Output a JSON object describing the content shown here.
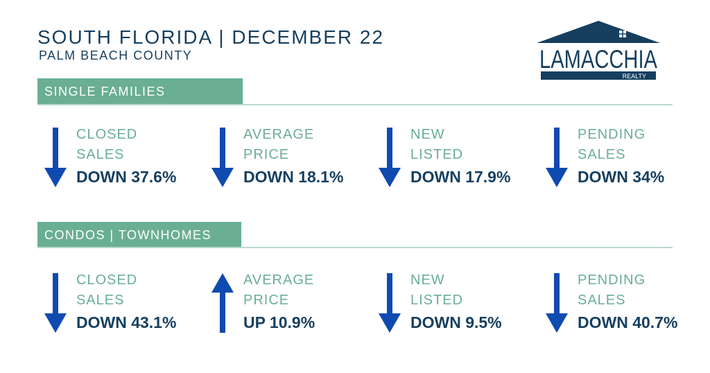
{
  "header": {
    "title": "SOUTH FLORIDA | DECEMBER 22",
    "subtitle": "PALM BEACH COUNTY"
  },
  "logo": {
    "name": "LAMACCHIA",
    "tagline": "REALTY",
    "color": "#163f5f"
  },
  "colors": {
    "accent_green": "#6aae94",
    "navy": "#163f5f",
    "arrow_blue": "#0f4ab0"
  },
  "sections": [
    {
      "title": "SINGLE FAMILIES",
      "stats": [
        {
          "label_line1": "CLOSED",
          "label_line2": "SALES",
          "value": "DOWN 37.6%",
          "direction": "down"
        },
        {
          "label_line1": "AVERAGE",
          "label_line2": "PRICE",
          "value": "DOWN 18.1%",
          "direction": "down"
        },
        {
          "label_line1": "NEW",
          "label_line2": "LISTED",
          "value": "DOWN 17.9%",
          "direction": "down"
        },
        {
          "label_line1": "PENDING",
          "label_line2": "SALES",
          "value": "DOWN 34%",
          "direction": "down"
        }
      ]
    },
    {
      "title": "CONDOS | TOWNHOMES",
      "stats": [
        {
          "label_line1": "CLOSED",
          "label_line2": "SALES",
          "value": "DOWN 43.1%",
          "direction": "down"
        },
        {
          "label_line1": "AVERAGE",
          "label_line2": "PRICE",
          "value": "UP 10.9%",
          "direction": "up"
        },
        {
          "label_line1": "NEW",
          "label_line2": "LISTED",
          "value": "DOWN 9.5%",
          "direction": "down"
        },
        {
          "label_line1": "PENDING",
          "label_line2": "SALES",
          "value": "DOWN 40.7%",
          "direction": "down"
        }
      ]
    }
  ]
}
